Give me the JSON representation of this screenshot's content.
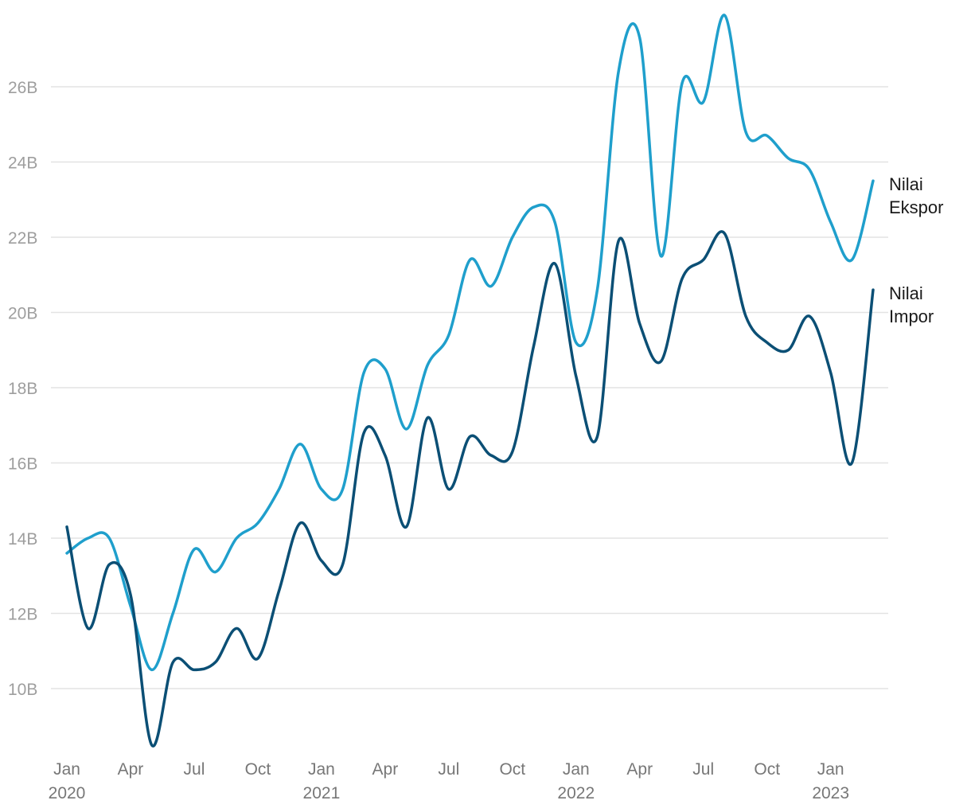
{
  "chart_data": {
    "type": "line",
    "title": "",
    "xlabel": "",
    "ylabel": "",
    "ylim": [
      8.0,
      27.5
    ],
    "grid": true,
    "y_ticks": [
      10,
      12,
      14,
      16,
      18,
      20,
      22,
      24,
      26
    ],
    "y_tick_labels": [
      "10B",
      "12B",
      "14B",
      "16B",
      "18B",
      "20B",
      "22B",
      "24B",
      "26B"
    ],
    "x_ticks": [
      {
        "month": "Jan",
        "year": "2020",
        "date": "2020-01"
      },
      {
        "month": "Apr",
        "year": "",
        "date": "2020-04"
      },
      {
        "month": "Jul",
        "year": "",
        "date": "2020-07"
      },
      {
        "month": "Oct",
        "year": "",
        "date": "2020-10"
      },
      {
        "month": "Jan",
        "year": "2021",
        "date": "2021-01"
      },
      {
        "month": "Apr",
        "year": "",
        "date": "2021-04"
      },
      {
        "month": "Jul",
        "year": "",
        "date": "2021-07"
      },
      {
        "month": "Oct",
        "year": "",
        "date": "2021-10"
      },
      {
        "month": "Jan",
        "year": "2022",
        "date": "2022-01"
      },
      {
        "month": "Apr",
        "year": "",
        "date": "2022-04"
      },
      {
        "month": "Jul",
        "year": "",
        "date": "2022-07"
      },
      {
        "month": "Oct",
        "year": "",
        "date": "2022-10"
      },
      {
        "month": "Jan",
        "year": "2023",
        "date": "2023-01"
      }
    ],
    "x": [
      "2020-01",
      "2020-02",
      "2020-03",
      "2020-04",
      "2020-05",
      "2020-06",
      "2020-07",
      "2020-08",
      "2020-09",
      "2020-10",
      "2020-11",
      "2020-12",
      "2021-01",
      "2021-02",
      "2021-03",
      "2021-04",
      "2021-05",
      "2021-06",
      "2021-07",
      "2021-08",
      "2021-09",
      "2021-10",
      "2021-11",
      "2021-12",
      "2022-01",
      "2022-02",
      "2022-03",
      "2022-04",
      "2022-05",
      "2022-06",
      "2022-07",
      "2022-08",
      "2022-09",
      "2022-10",
      "2022-11",
      "2022-12",
      "2023-01",
      "2023-02",
      "2023-03"
    ],
    "series": [
      {
        "name": "Nilai Ekspor",
        "label_lines": [
          "Nilai",
          "Ekspor"
        ],
        "color": "#1f9fcc",
        "values": [
          13.6,
          14.0,
          14.0,
          12.2,
          10.5,
          12.0,
          13.7,
          13.1,
          14.0,
          14.4,
          15.3,
          16.5,
          15.3,
          15.3,
          18.4,
          18.5,
          16.9,
          18.6,
          19.4,
          21.4,
          20.7,
          22.0,
          22.8,
          22.4,
          19.2,
          20.6,
          26.4,
          27.3,
          21.5,
          26.1,
          25.6,
          27.9,
          24.8,
          24.7,
          24.1,
          23.8,
          22.4,
          21.4,
          23.5
        ]
      },
      {
        "name": "Nilai Impor",
        "label_lines": [
          "Nilai",
          "Impor"
        ],
        "color": "#0b4f75",
        "values": [
          14.3,
          11.6,
          13.3,
          12.5,
          8.5,
          10.7,
          10.5,
          10.7,
          11.6,
          10.8,
          12.6,
          14.4,
          13.4,
          13.3,
          16.8,
          16.2,
          14.3,
          17.2,
          15.3,
          16.7,
          16.2,
          16.3,
          19.1,
          21.3,
          18.3,
          16.7,
          21.9,
          19.7,
          18.7,
          20.9,
          21.4,
          22.1,
          19.9,
          19.2,
          19.0,
          19.9,
          18.4,
          16.0,
          20.6
        ]
      }
    ]
  }
}
